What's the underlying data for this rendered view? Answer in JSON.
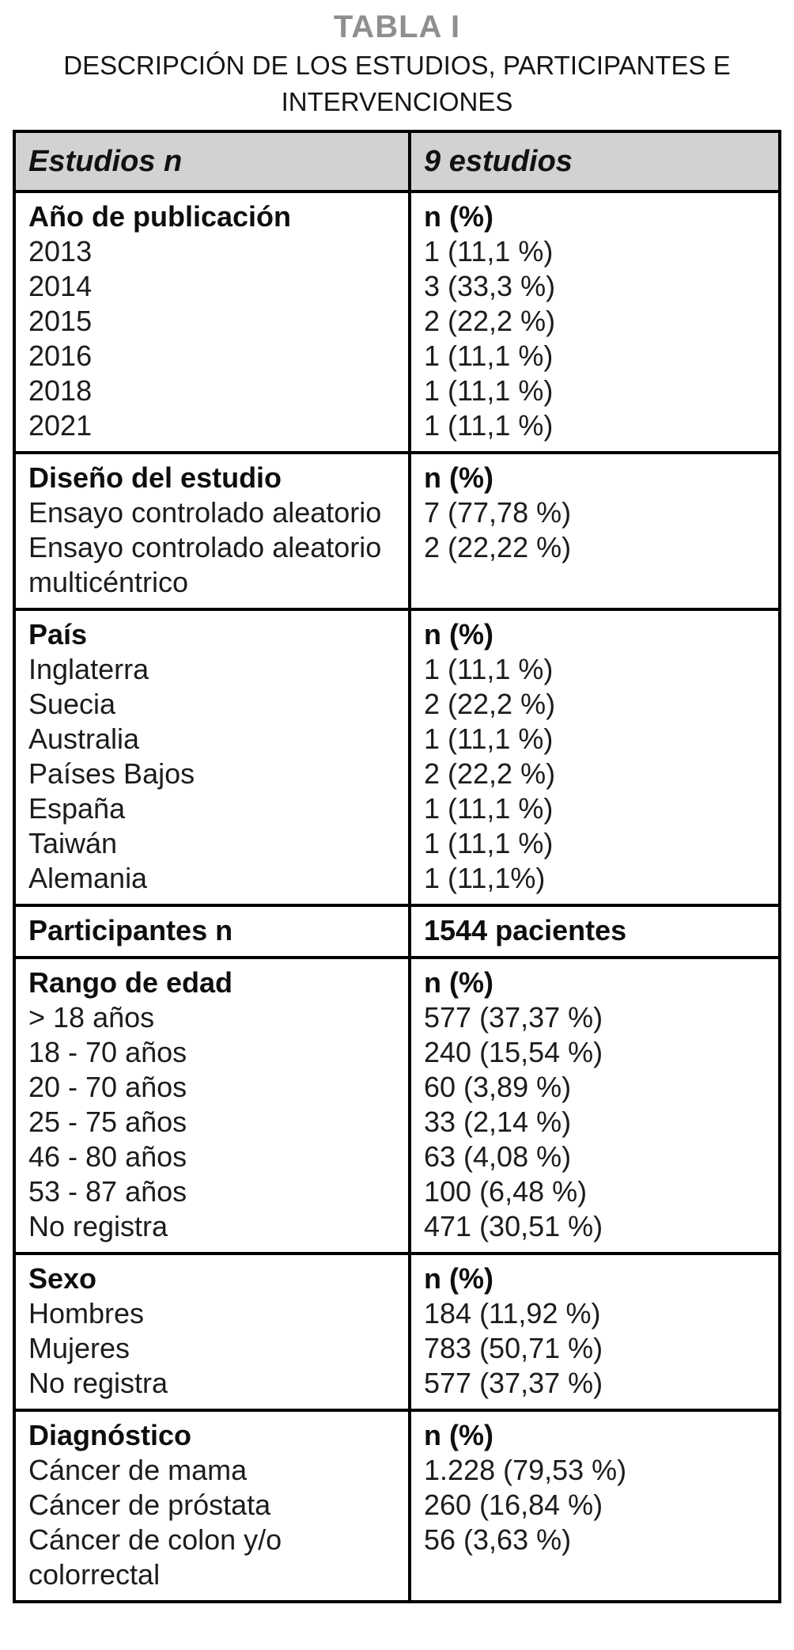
{
  "page": {
    "title": "TABLA I",
    "subtitle": "DESCRIPCIÓN DE LOS ESTUDIOS, PARTICIPANTES E INTERVENCIONES"
  },
  "colors": {
    "title_gray": "#8f8f8f",
    "header_background": "#d2d2d2",
    "border": "#000000",
    "text": "#1c1c1c"
  },
  "table": {
    "header": {
      "left": "Estudios n",
      "right": "9 estudios"
    },
    "sections": [
      {
        "label": "Año de publicación",
        "items": [
          "2013",
          "2014",
          "2015",
          "2016",
          "2018",
          "2021"
        ],
        "value_header": "n (%)",
        "values": [
          "1 (11,1 %)",
          "3 (33,3 %)",
          "2 (22,2 %)",
          "1 (11,1 %)",
          "1 (11,1 %)",
          "1 (11,1 %)"
        ]
      },
      {
        "label": "Diseño del estudio",
        "items": [
          "Ensayo controlado aleatorio",
          "Ensayo controlado aleatorio multicéntrico"
        ],
        "value_header": "n (%)",
        "values": [
          "7 (77,78 %)",
          "2 (22,22 %)"
        ]
      },
      {
        "label": "País",
        "items": [
          "Inglaterra",
          "Suecia",
          "Australia",
          "Países Bajos",
          "España",
          "Taiwán",
          "Alemania"
        ],
        "value_header": "n (%)",
        "values": [
          "1 (11,1 %)",
          "2 (22,2 %)",
          "1 (11,1 %)",
          "2 (22,2 %)",
          "1 (11,1 %)",
          "1 (11,1 %)",
          "1 (11,1%)"
        ]
      },
      {
        "label": "Participantes n",
        "items": [],
        "value_header": "1544 pacientes",
        "values": []
      },
      {
        "label": "Rango de edad",
        "items": [
          "> 18 años",
          "18 - 70 años",
          "20 - 70 años",
          "25 - 75 años",
          "46 - 80 años",
          "53 - 87 años",
          "No registra"
        ],
        "value_header": "n (%)",
        "values": [
          "577 (37,37 %)",
          "240 (15,54 %)",
          "60 (3,89 %)",
          "33 (2,14 %)",
          "63 (4,08 %)",
          "100 (6,48 %)",
          "471 (30,51 %)"
        ]
      },
      {
        "label": "Sexo",
        "items": [
          "Hombres",
          "Mujeres",
          "No registra"
        ],
        "value_header": "n (%)",
        "values": [
          "184 (11,92 %)",
          "783 (50,71 %)",
          "577 (37,37 %)"
        ]
      },
      {
        "label": "Diagnóstico",
        "items": [
          "Cáncer de mama",
          "Cáncer de próstata",
          "Cáncer de colon y/o colorrectal"
        ],
        "value_header": "n (%)",
        "values": [
          "1.228 (79,53 %)",
          "260 (16,84 %)",
          "56 (3,63 %)"
        ]
      }
    ]
  }
}
